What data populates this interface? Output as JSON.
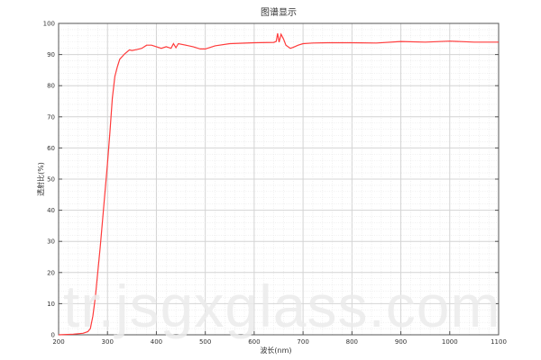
{
  "chart_data": {
    "type": "line",
    "title": "图谱显示",
    "xlabel": "波长(nm)",
    "ylabel": "透射比(%)",
    "xlim": [
      200,
      1100
    ],
    "ylim": [
      0,
      100
    ],
    "xticks": [
      200,
      300,
      400,
      500,
      600,
      700,
      800,
      900,
      1000,
      1100
    ],
    "yticks": [
      0,
      10,
      20,
      30,
      40,
      50,
      60,
      70,
      80,
      90,
      100
    ],
    "grid": true,
    "line_color": "#ff3b3b",
    "x": [
      200,
      230,
      250,
      260,
      265,
      270,
      275,
      280,
      285,
      290,
      295,
      300,
      305,
      310,
      315,
      320,
      325,
      335,
      345,
      350,
      360,
      370,
      380,
      390,
      400,
      410,
      420,
      430,
      435,
      440,
      445,
      460,
      475,
      490,
      500,
      520,
      550,
      600,
      640,
      645,
      648,
      651,
      655,
      660,
      665,
      674,
      680,
      690,
      700,
      720,
      750,
      800,
      850,
      900,
      950,
      1000,
      1050,
      1100
    ],
    "y": [
      0,
      0.2,
      0.5,
      1,
      2,
      6,
      12,
      20,
      28,
      37,
      46,
      55,
      65,
      76,
      83,
      86,
      88.5,
      90.2,
      91.5,
      91.3,
      91.6,
      92,
      93,
      93,
      92.5,
      92,
      92.5,
      92,
      93.5,
      92.2,
      93.5,
      93,
      92.5,
      91.8,
      91.8,
      92.8,
      93.5,
      93.8,
      93.9,
      94.2,
      96.8,
      94,
      96.5,
      95,
      93,
      92,
      92.3,
      93,
      93.5,
      93.7,
      93.8,
      93.8,
      93.7,
      94.2,
      94,
      94.3,
      94,
      94
    ]
  },
  "watermark": "tr.jsgxglass.com"
}
